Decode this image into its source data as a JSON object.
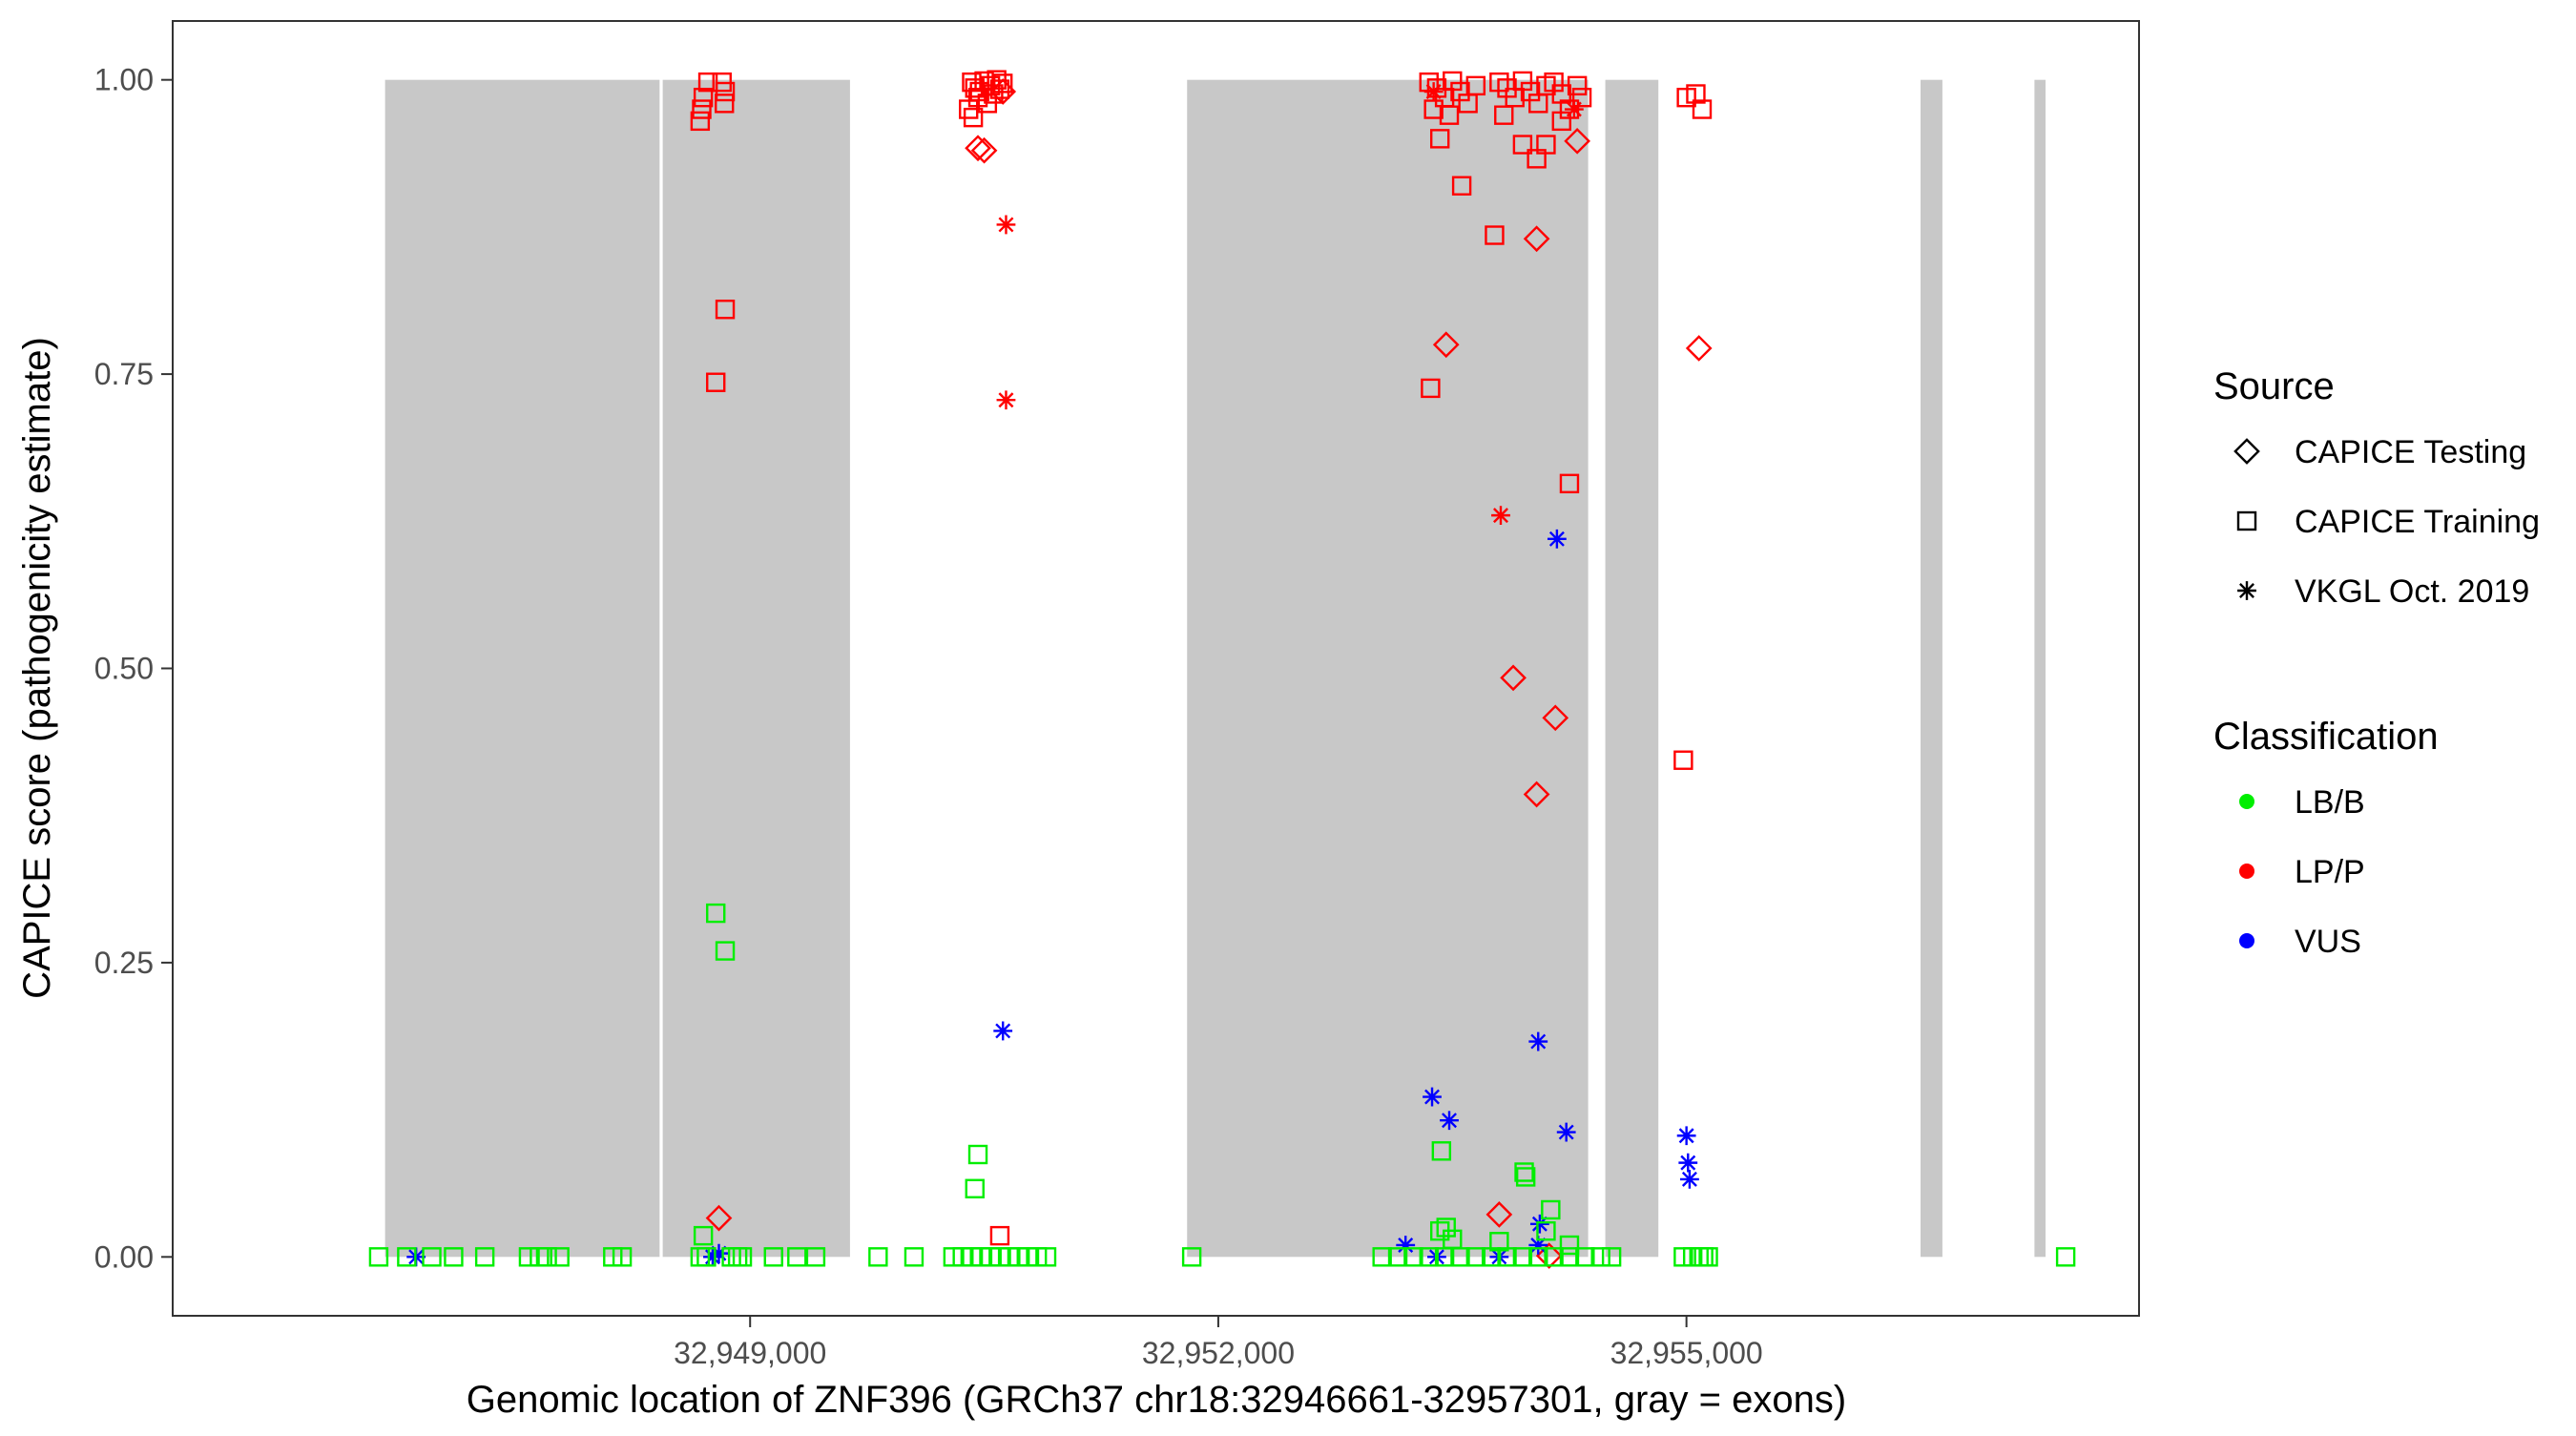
{
  "chart_data": {
    "type": "scatter",
    "title": "",
    "xlabel": "Genomic location of ZNF396 (GRCh37 chr18:32946661-32957301, gray = exons)",
    "ylabel": "CAPICE score (pathogenicity estimate)",
    "xlim": [
      32945300,
      32957900
    ],
    "ylim": [
      -0.05,
      1.05
    ],
    "grid": false,
    "legend_position": "right",
    "x_ticks": [
      {
        "value": 32949000,
        "label": "32,949,000"
      },
      {
        "value": 32952000,
        "label": "32,952,000"
      },
      {
        "value": 32955000,
        "label": "32,955,000"
      }
    ],
    "y_ticks": [
      {
        "value": 0.0,
        "label": "0.00"
      },
      {
        "value": 0.25,
        "label": "0.25"
      },
      {
        "value": 0.5,
        "label": "0.50"
      },
      {
        "value": 0.75,
        "label": "0.75"
      },
      {
        "value": 1.0,
        "label": "1.00"
      }
    ],
    "exons": [
      {
        "start": 32946661,
        "end": 32948420
      },
      {
        "start": 32948440,
        "end": 32949640
      },
      {
        "start": 32951800,
        "end": 32954370
      },
      {
        "start": 32954480,
        "end": 32954820
      },
      {
        "start": 32956500,
        "end": 32956640
      },
      {
        "start": 32957230,
        "end": 32957301
      }
    ],
    "legend": {
      "source_title": "Source",
      "source_items": [
        {
          "label": "CAPICE Testing",
          "shape": "diamond"
        },
        {
          "label": "CAPICE Training",
          "shape": "square"
        },
        {
          "label": "VKGL Oct. 2019",
          "shape": "asterisk"
        }
      ],
      "class_title": "Classification",
      "class_items": [
        {
          "label": "LB/B",
          "color": "#00ee00"
        },
        {
          "label": "LP/P",
          "color": "#ff0000"
        },
        {
          "label": "VUS",
          "color": "#0000ff"
        }
      ]
    },
    "series": [
      {
        "source": "CAPICE Training",
        "classification": "LP/P",
        "points": [
          {
            "x": 32948700,
            "y": 0.985
          },
          {
            "x": 32948730,
            "y": 0.998
          },
          {
            "x": 32948690,
            "y": 0.975
          },
          {
            "x": 32948680,
            "y": 0.965
          },
          {
            "x": 32948820,
            "y": 0.998
          },
          {
            "x": 32948840,
            "y": 0.99
          },
          {
            "x": 32948835,
            "y": 0.98
          },
          {
            "x": 32948840,
            "y": 0.805
          },
          {
            "x": 32948780,
            "y": 0.743
          },
          {
            "x": 32950420,
            "y": 0.998
          },
          {
            "x": 32950440,
            "y": 0.993
          },
          {
            "x": 32950460,
            "y": 0.985
          },
          {
            "x": 32950500,
            "y": 0.999
          },
          {
            "x": 32950540,
            "y": 0.995
          },
          {
            "x": 32950580,
            "y": 1.0
          },
          {
            "x": 32950620,
            "y": 0.997
          },
          {
            "x": 32950400,
            "y": 0.975
          },
          {
            "x": 32950430,
            "y": 0.968
          },
          {
            "x": 32950470,
            "y": 0.99
          },
          {
            "x": 32950520,
            "y": 0.98
          },
          {
            "x": 32950560,
            "y": 0.988
          },
          {
            "x": 32950600,
            "y": 0.992
          },
          {
            "x": 32950600,
            "y": 0.018
          },
          {
            "x": 32953350,
            "y": 0.998
          },
          {
            "x": 32953400,
            "y": 0.993
          },
          {
            "x": 32953450,
            "y": 0.985
          },
          {
            "x": 32953500,
            "y": 0.999
          },
          {
            "x": 32953550,
            "y": 0.99
          },
          {
            "x": 32953600,
            "y": 0.98
          },
          {
            "x": 32953650,
            "y": 0.995
          },
          {
            "x": 32953380,
            "y": 0.975
          },
          {
            "x": 32953480,
            "y": 0.97
          },
          {
            "x": 32953420,
            "y": 0.95
          },
          {
            "x": 32953560,
            "y": 0.91
          },
          {
            "x": 32953800,
            "y": 0.998
          },
          {
            "x": 32953850,
            "y": 0.993
          },
          {
            "x": 32953900,
            "y": 0.985
          },
          {
            "x": 32953950,
            "y": 0.999
          },
          {
            "x": 32954000,
            "y": 0.99
          },
          {
            "x": 32954050,
            "y": 0.98
          },
          {
            "x": 32954100,
            "y": 0.995
          },
          {
            "x": 32954150,
            "y": 0.998
          },
          {
            "x": 32954200,
            "y": 0.988
          },
          {
            "x": 32954250,
            "y": 0.975
          },
          {
            "x": 32954300,
            "y": 0.995
          },
          {
            "x": 32954330,
            "y": 0.985
          },
          {
            "x": 32953830,
            "y": 0.97
          },
          {
            "x": 32953950,
            "y": 0.945
          },
          {
            "x": 32954040,
            "y": 0.933
          },
          {
            "x": 32954100,
            "y": 0.945
          },
          {
            "x": 32954200,
            "y": 0.965
          },
          {
            "x": 32953770,
            "y": 0.868
          },
          {
            "x": 32953360,
            "y": 0.738
          },
          {
            "x": 32954250,
            "y": 0.657
          },
          {
            "x": 32955000,
            "y": 0.985
          },
          {
            "x": 32955060,
            "y": 0.988
          },
          {
            "x": 32955100,
            "y": 0.975
          },
          {
            "x": 32954980,
            "y": 0.422
          }
        ]
      },
      {
        "source": "CAPICE Testing",
        "classification": "LP/P",
        "points": [
          {
            "x": 32950460,
            "y": 0.942
          },
          {
            "x": 32950500,
            "y": 0.94
          },
          {
            "x": 32950620,
            "y": 0.99
          },
          {
            "x": 32953460,
            "y": 0.775
          },
          {
            "x": 32954040,
            "y": 0.865
          },
          {
            "x": 32953890,
            "y": 0.492
          },
          {
            "x": 32954160,
            "y": 0.458
          },
          {
            "x": 32954040,
            "y": 0.393
          },
          {
            "x": 32953800,
            "y": 0.036
          },
          {
            "x": 32954300,
            "y": 0.948
          },
          {
            "x": 32954120,
            "y": 0.001
          },
          {
            "x": 32948800,
            "y": 0.033
          },
          {
            "x": 32955080,
            "y": 0.772
          }
        ]
      },
      {
        "source": "VKGL Oct. 2019",
        "classification": "LP/P",
        "points": [
          {
            "x": 32950640,
            "y": 0.877
          },
          {
            "x": 32950640,
            "y": 0.728
          },
          {
            "x": 32953810,
            "y": 0.63
          },
          {
            "x": 32953380,
            "y": 0.99
          },
          {
            "x": 32954280,
            "y": 0.975
          }
        ]
      },
      {
        "source": "VKGL Oct. 2019",
        "classification": "VUS",
        "points": [
          {
            "x": 32946860,
            "y": 0.0
          },
          {
            "x": 32948800,
            "y": 0.003
          },
          {
            "x": 32948760,
            "y": 0.0
          },
          {
            "x": 32950620,
            "y": 0.192
          },
          {
            "x": 32953370,
            "y": 0.136
          },
          {
            "x": 32953480,
            "y": 0.116
          },
          {
            "x": 32953200,
            "y": 0.01
          },
          {
            "x": 32953400,
            "y": 0.0
          },
          {
            "x": 32953800,
            "y": 0.0
          },
          {
            "x": 32954050,
            "y": 0.183
          },
          {
            "x": 32954170,
            "y": 0.61
          },
          {
            "x": 32954230,
            "y": 0.106
          },
          {
            "x": 32954060,
            "y": 0.028
          },
          {
            "x": 32954050,
            "y": 0.01
          },
          {
            "x": 32955000,
            "y": 0.103
          },
          {
            "x": 32955010,
            "y": 0.08
          },
          {
            "x": 32955020,
            "y": 0.066
          }
        ]
      },
      {
        "source": "CAPICE Training",
        "classification": "LB/B",
        "points": [
          {
            "x": 32946620,
            "y": 0.0
          },
          {
            "x": 32946800,
            "y": 0.0
          },
          {
            "x": 32946960,
            "y": 0.0
          },
          {
            "x": 32947100,
            "y": 0.0
          },
          {
            "x": 32947300,
            "y": 0.0
          },
          {
            "x": 32947580,
            "y": 0.0
          },
          {
            "x": 32947650,
            "y": 0.0
          },
          {
            "x": 32947700,
            "y": 0.0
          },
          {
            "x": 32947780,
            "y": 0.0
          },
          {
            "x": 32948120,
            "y": 0.0
          },
          {
            "x": 32948180,
            "y": 0.0
          },
          {
            "x": 32948680,
            "y": 0.0
          },
          {
            "x": 32948720,
            "y": 0.0
          },
          {
            "x": 32948880,
            "y": 0.0
          },
          {
            "x": 32948920,
            "y": 0.0
          },
          {
            "x": 32948950,
            "y": 0.0
          },
          {
            "x": 32949150,
            "y": 0.0
          },
          {
            "x": 32949300,
            "y": 0.0
          },
          {
            "x": 32949420,
            "y": 0.0
          },
          {
            "x": 32949820,
            "y": 0.0
          },
          {
            "x": 32950050,
            "y": 0.0
          },
          {
            "x": 32948780,
            "y": 0.292
          },
          {
            "x": 32948840,
            "y": 0.26
          },
          {
            "x": 32948700,
            "y": 0.018
          },
          {
            "x": 32950300,
            "y": 0.0
          },
          {
            "x": 32950360,
            "y": 0.0
          },
          {
            "x": 32950420,
            "y": 0.0
          },
          {
            "x": 32950480,
            "y": 0.0
          },
          {
            "x": 32950540,
            "y": 0.0
          },
          {
            "x": 32950600,
            "y": 0.0
          },
          {
            "x": 32950660,
            "y": 0.0
          },
          {
            "x": 32950720,
            "y": 0.0
          },
          {
            "x": 32950780,
            "y": 0.0
          },
          {
            "x": 32950840,
            "y": 0.0
          },
          {
            "x": 32950900,
            "y": 0.0
          },
          {
            "x": 32950460,
            "y": 0.087
          },
          {
            "x": 32950440,
            "y": 0.058
          },
          {
            "x": 32951830,
            "y": 0.0
          },
          {
            "x": 32953050,
            "y": 0.0
          },
          {
            "x": 32953150,
            "y": 0.0
          },
          {
            "x": 32953250,
            "y": 0.0
          },
          {
            "x": 32953350,
            "y": 0.0
          },
          {
            "x": 32953450,
            "y": 0.0
          },
          {
            "x": 32953550,
            "y": 0.0
          },
          {
            "x": 32953650,
            "y": 0.0
          },
          {
            "x": 32953750,
            "y": 0.0
          },
          {
            "x": 32953850,
            "y": 0.0
          },
          {
            "x": 32953950,
            "y": 0.0
          },
          {
            "x": 32954050,
            "y": 0.0
          },
          {
            "x": 32954150,
            "y": 0.0
          },
          {
            "x": 32954250,
            "y": 0.0
          },
          {
            "x": 32954350,
            "y": 0.0
          },
          {
            "x": 32954450,
            "y": 0.0
          },
          {
            "x": 32954520,
            "y": 0.0
          },
          {
            "x": 32953430,
            "y": 0.09
          },
          {
            "x": 32953420,
            "y": 0.022
          },
          {
            "x": 32953460,
            "y": 0.025
          },
          {
            "x": 32953500,
            "y": 0.015
          },
          {
            "x": 32953960,
            "y": 0.072
          },
          {
            "x": 32953970,
            "y": 0.068
          },
          {
            "x": 32954130,
            "y": 0.04
          },
          {
            "x": 32954100,
            "y": 0.022
          },
          {
            "x": 32953800,
            "y": 0.013
          },
          {
            "x": 32954250,
            "y": 0.01
          },
          {
            "x": 32954980,
            "y": 0.0
          },
          {
            "x": 32955040,
            "y": 0.0
          },
          {
            "x": 32955080,
            "y": 0.0
          },
          {
            "x": 32955110,
            "y": 0.0
          },
          {
            "x": 32955140,
            "y": 0.0
          },
          {
            "x": 32957430,
            "y": 0.0
          }
        ]
      }
    ]
  }
}
